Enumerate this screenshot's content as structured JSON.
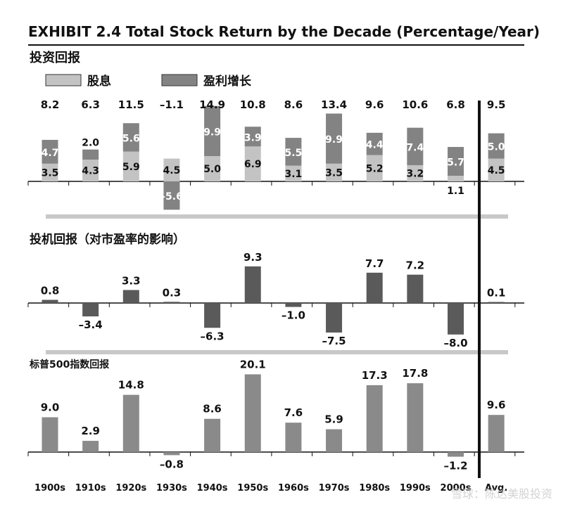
{
  "title": "EXHIBIT 2.4    Total Stock Return by the Decade (Percentage/Year)",
  "colors": {
    "dividend": "#c3c3c3",
    "earnings": "#838383",
    "speculative": "#5a5a5a",
    "sp500": "#8a8a8a",
    "separator": "#c8c8c8",
    "axis": "#111111"
  },
  "legend": {
    "dividend": "股息",
    "earnings": "盈利增长"
  },
  "watermark": "雪球：陈达美股投资",
  "chart_data": [
    {
      "type": "bar",
      "title": "投资回报",
      "stacked": true,
      "categories": [
        "1900s",
        "1910s",
        "1920s",
        "1930s",
        "1940s",
        "1950s",
        "1960s",
        "1970s",
        "1980s",
        "1990s",
        "2000s",
        "Avg."
      ],
      "totals": [
        "8.2",
        "6.3",
        "11.5",
        "–1.1",
        "14.9",
        "10.8",
        "8.6",
        "13.4",
        "9.6",
        "10.6",
        "6.8",
        "9.5"
      ],
      "series": [
        {
          "name": "股息",
          "values": [
            3.5,
            4.3,
            5.9,
            4.5,
            5.0,
            6.9,
            3.1,
            3.5,
            5.2,
            3.2,
            1.1,
            4.5
          ],
          "labels": [
            "3.5",
            "4.3",
            "5.9",
            "4.5",
            "5.0",
            "6.9",
            "3.1",
            "3.5",
            "5.2",
            "3.2",
            "1.1",
            "4.5"
          ]
        },
        {
          "name": "盈利增长",
          "values": [
            4.7,
            2.0,
            5.6,
            -5.6,
            9.9,
            3.9,
            5.5,
            9.9,
            4.4,
            7.4,
            5.7,
            5.0
          ],
          "labels": [
            "4.7",
            "2.0",
            "5.6",
            "–5.6",
            "9.9",
            "3.9",
            "5.5",
            "9.9",
            "4.4",
            "7.4",
            "5.7",
            "5.0"
          ]
        }
      ]
    },
    {
      "type": "bar",
      "title": "投机回报（对市盈率的影响）",
      "categories": [
        "1900s",
        "1910s",
        "1920s",
        "1930s",
        "1940s",
        "1950s",
        "1960s",
        "1970s",
        "1980s",
        "1990s",
        "2000s",
        "Avg."
      ],
      "values": [
        0.8,
        -3.4,
        3.3,
        0.3,
        -6.3,
        9.3,
        -1.0,
        -7.5,
        7.7,
        7.2,
        -8.0,
        0.1
      ],
      "labels": [
        "0.8",
        "–3.4",
        "3.3",
        "0.3",
        "–6.3",
        "9.3",
        "–1.0",
        "–7.5",
        "7.7",
        "7.2",
        "–8.0",
        "0.1"
      ]
    },
    {
      "type": "bar",
      "title": "标普500指数回报",
      "categories": [
        "1900s",
        "1910s",
        "1920s",
        "1930s",
        "1940s",
        "1950s",
        "1960s",
        "1970s",
        "1980s",
        "1990s",
        "2000s",
        "Avg."
      ],
      "values": [
        9.0,
        2.9,
        14.8,
        -0.8,
        8.6,
        20.1,
        7.6,
        5.9,
        17.3,
        17.8,
        -1.2,
        9.6
      ],
      "labels": [
        "9.0",
        "2.9",
        "14.8",
        "–0.8",
        "8.6",
        "20.1",
        "7.6",
        "5.9",
        "17.3",
        "17.8",
        "–1.2",
        "9.6"
      ]
    }
  ]
}
